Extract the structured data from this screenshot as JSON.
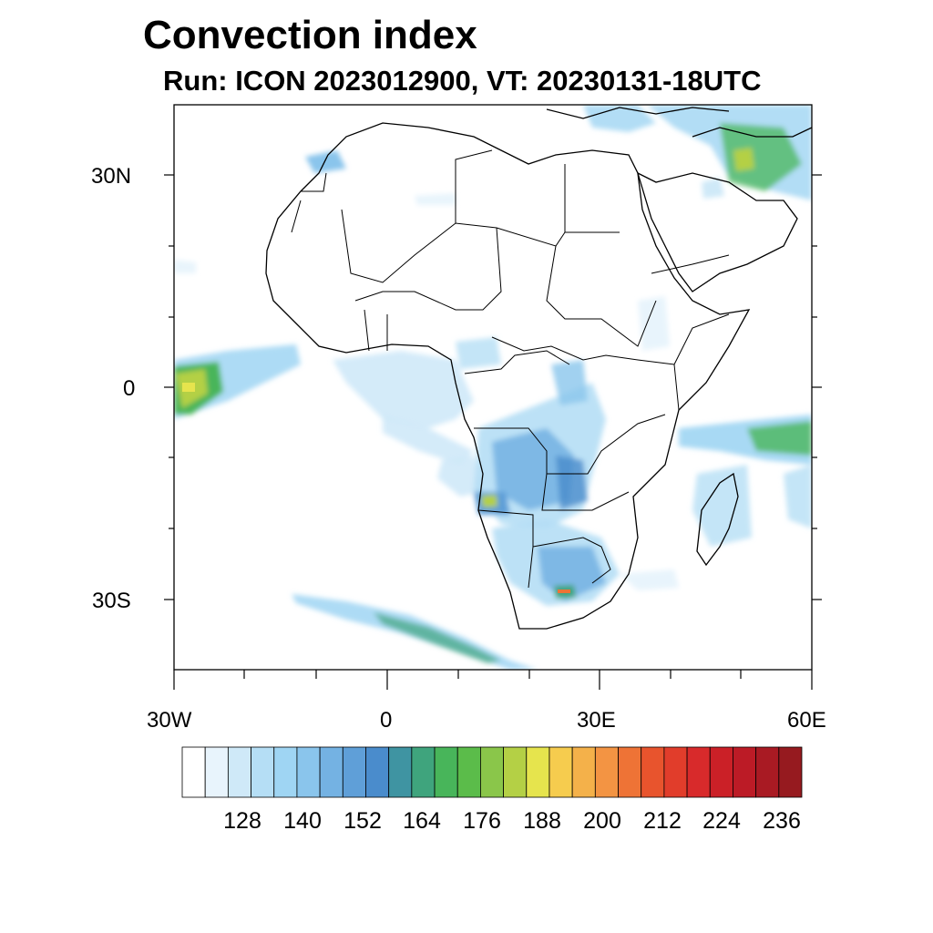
{
  "title": "Convection index",
  "subtitle": "Run: ICON 2023012900,  VT: 20230131-18UTC",
  "axes": {
    "lat_labels": [
      "30N",
      "0",
      "30S"
    ],
    "lon_labels": [
      "30W",
      "0",
      "30E",
      "60E"
    ]
  },
  "colorbar": {
    "labels": [
      "128",
      "140",
      "152",
      "164",
      "176",
      "188",
      "200",
      "212",
      "224",
      "236"
    ],
    "colors": [
      "#ffffff",
      "#e8f4fc",
      "#cfe9f8",
      "#b5def5",
      "#9fd5f3",
      "#8ac5ec",
      "#74b2e3",
      "#5f9fd8",
      "#4a8ccc",
      "#3f94a2",
      "#3fa47d",
      "#48b55a",
      "#5bbc4a",
      "#8ac64a",
      "#b4d045",
      "#e6e44d",
      "#f6cc4e",
      "#f4b14a",
      "#f39443",
      "#ee7336",
      "#e8542d",
      "#e13d2b",
      "#d82a2b",
      "#cb2027",
      "#bc1b26",
      "#a91a23",
      "#961a1f"
    ]
  }
}
